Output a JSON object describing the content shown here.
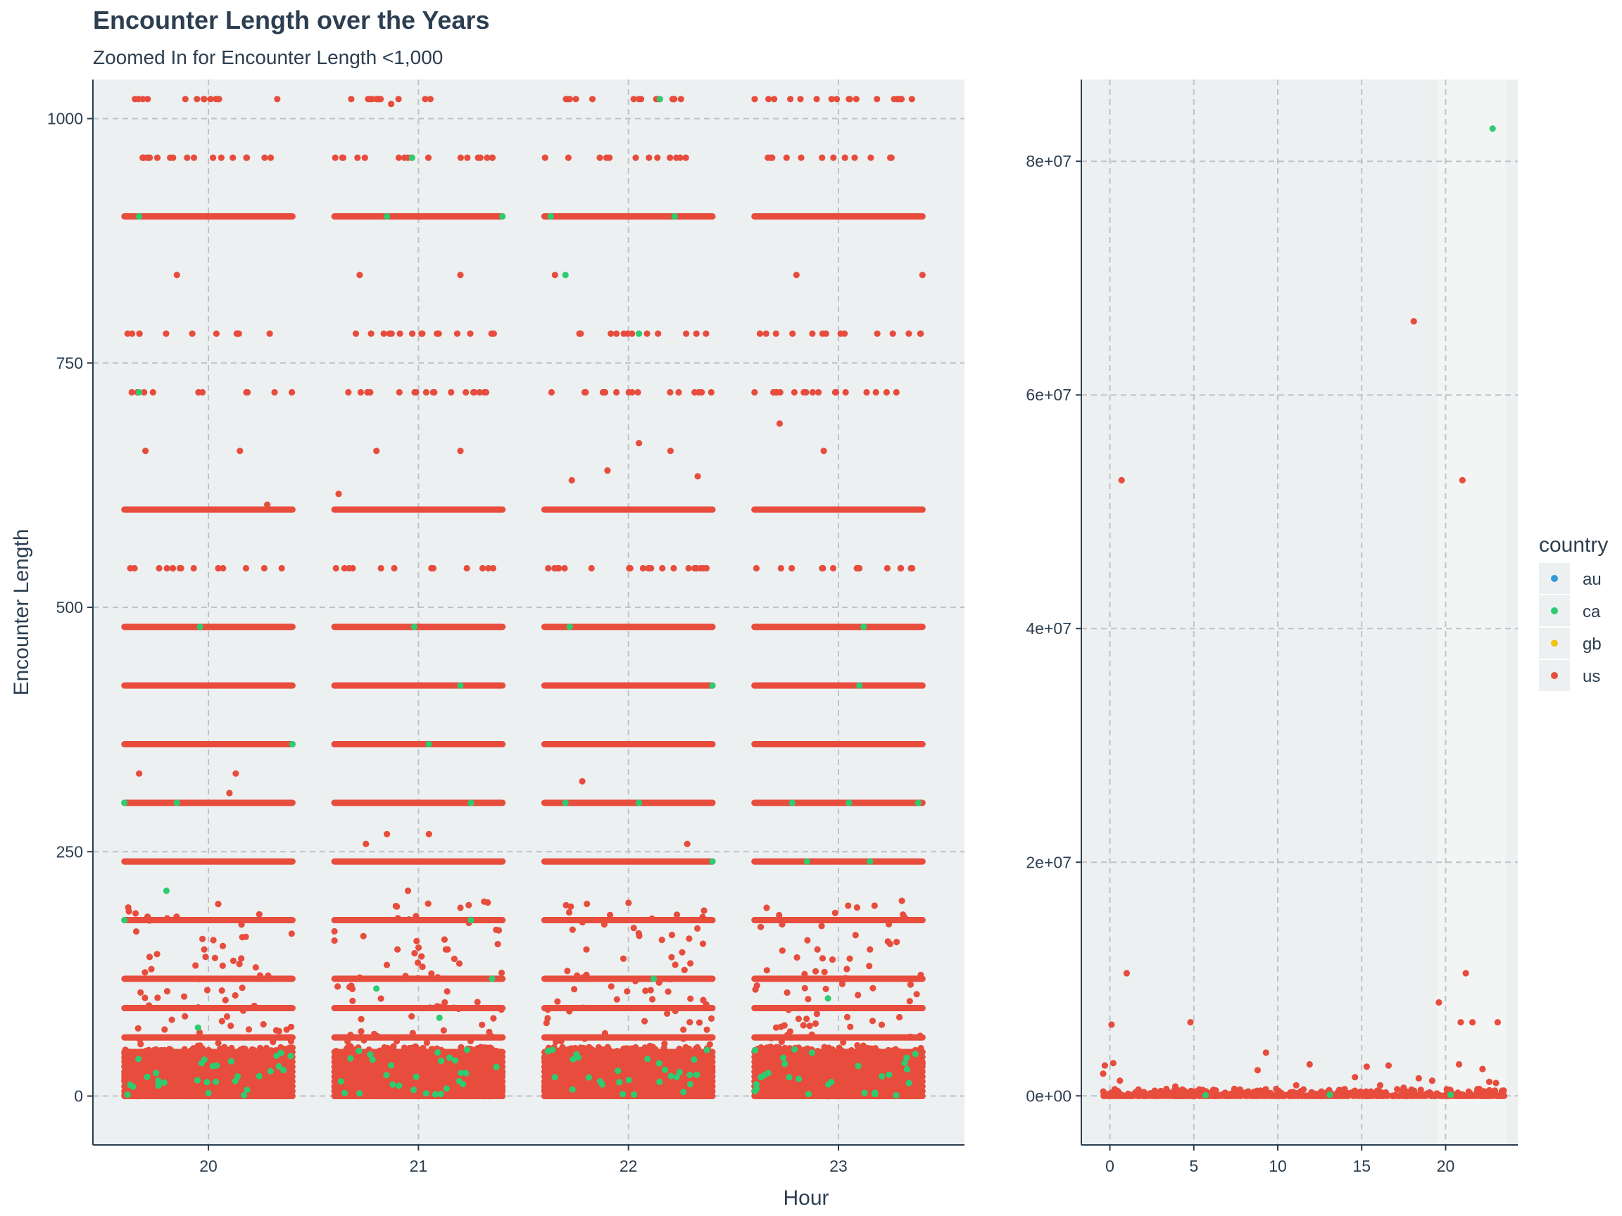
{
  "title": "Encounter Length over the Years",
  "subtitle": "Zoomed In for Encounter Length <1,000",
  "colors": {
    "au": "#3498db",
    "ca": "#2ecc71",
    "gb": "#f1c40f",
    "us": "#e74c3c"
  },
  "legend": {
    "title": "country",
    "items": [
      "au",
      "ca",
      "gb",
      "us"
    ]
  },
  "chart_data": [
    {
      "type": "scatter",
      "panel": "left",
      "xlabel": "Hour",
      "ylabel": "Encounter Length",
      "xlim": [
        19.45,
        23.6
      ],
      "ylim": [
        -50,
        1040
      ],
      "xticks": [
        20,
        21,
        22,
        23
      ],
      "yticks": [
        0,
        250,
        500,
        750,
        1000
      ],
      "ytick_labels": [
        "0",
        "250",
        "500",
        "750",
        "1000"
      ],
      "grid": true,
      "jitter_width": 0.4,
      "series": [
        {
          "name": "us",
          "bands": [
            0,
            5,
            10,
            15,
            20,
            25,
            30,
            35,
            40,
            45,
            60,
            90,
            120,
            180,
            240,
            300,
            360,
            420,
            480,
            600,
            900
          ],
          "sparse_levels": [
            540,
            720,
            780,
            960,
            1020
          ],
          "outliers": [
            [
              19.65,
              1020
            ],
            [
              19.98,
              1020
            ],
            [
              20.05,
              1020
            ],
            [
              20.8,
              1020
            ],
            [
              20.87,
              1015
            ],
            [
              21.75,
              1020
            ],
            [
              22.05,
              1020
            ],
            [
              22.25,
              1020
            ],
            [
              23.05,
              1020
            ],
            [
              23.3,
              1020
            ],
            [
              19.85,
              840
            ],
            [
              20.72,
              840
            ],
            [
              21.2,
              840
            ],
            [
              21.65,
              840
            ],
            [
              22.8,
              840
            ],
            [
              23.4,
              840
            ],
            [
              19.7,
              660
            ],
            [
              20.15,
              660
            ],
            [
              20.8,
              660
            ],
            [
              21.2,
              660
            ],
            [
              22.2,
              660
            ],
            [
              22.93,
              660
            ],
            [
              22.72,
              688
            ],
            [
              22.05,
              668
            ],
            [
              21.73,
              630
            ],
            [
              21.9,
              640
            ],
            [
              22.33,
              634
            ],
            [
              20.28,
              605
            ],
            [
              20.62,
              616
            ],
            [
              19.67,
              330
            ],
            [
              20.13,
              330
            ],
            [
              20.1,
              310
            ],
            [
              21.78,
              322
            ],
            [
              20.75,
              258
            ],
            [
              20.85,
              268
            ],
            [
              21.05,
              268
            ],
            [
              22.28,
              258
            ],
            [
              20.95,
              210
            ],
            [
              21.33,
              198
            ],
            [
              21.37,
              170
            ],
            [
              22.92,
              174
            ],
            [
              19.98,
              150
            ],
            [
              20.9,
              150
            ],
            [
              21.8,
              150
            ],
            [
              22.9,
              150
            ],
            [
              23.15,
              150
            ]
          ]
        },
        {
          "name": "ca",
          "points": [
            [
              19.67,
              900
            ],
            [
              20.85,
              900
            ],
            [
              21.4,
              900
            ],
            [
              21.63,
              900
            ],
            [
              22.22,
              900
            ],
            [
              19.67,
              720
            ],
            [
              19.96,
              480
            ],
            [
              20.98,
              480
            ],
            [
              21.72,
              480
            ],
            [
              23.12,
              480
            ],
            [
              19.6,
              300
            ],
            [
              19.85,
              300
            ],
            [
              21.25,
              300
            ],
            [
              21.7,
              300
            ],
            [
              22.05,
              300
            ],
            [
              22.78,
              300
            ],
            [
              23.05,
              300
            ],
            [
              23.38,
              300
            ],
            [
              19.8,
              210
            ],
            [
              22.4,
              240
            ],
            [
              22.85,
              240
            ],
            [
              23.15,
              240
            ],
            [
              21.2,
              420
            ],
            [
              22.4,
              420
            ],
            [
              23.1,
              420
            ],
            [
              20.4,
              360
            ],
            [
              21.05,
              360
            ],
            [
              19.6,
              180
            ],
            [
              21.25,
              180
            ],
            [
              20.97,
              960
            ],
            [
              22.15,
              1020
            ],
            [
              21.7,
              840
            ],
            [
              22.05,
              780
            ],
            [
              19.95,
              70
            ],
            [
              20.8,
              110
            ],
            [
              21.1,
              80
            ],
            [
              20.0,
              3
            ],
            [
              21.35,
              120
            ],
            [
              22.12,
              120
            ],
            [
              22.95,
              100
            ]
          ]
        }
      ]
    },
    {
      "type": "scatter",
      "panel": "right",
      "xlim": [
        -1.7,
        24.3
      ],
      "ylim": [
        -4200000,
        87000000
      ],
      "xticks": [
        0,
        5,
        10,
        15,
        20
      ],
      "yticks": [
        0,
        20000000,
        40000000,
        60000000,
        80000000
      ],
      "ytick_labels": [
        "0e+00",
        "2e+07",
        "4e+07",
        "6e+07",
        "8e+07"
      ],
      "highlight_x_range": [
        19.5,
        23.6
      ],
      "grid": true,
      "series": [
        {
          "name": "us",
          "points": [
            [
              0.7,
              52700000
            ],
            [
              18.1,
              66300000
            ],
            [
              21.0,
              52700000
            ],
            [
              1.0,
              10500000
            ],
            [
              21.2,
              10500000
            ],
            [
              0.1,
              6100000
            ],
            [
              4.8,
              6300000
            ],
            [
              20.9,
              6300000
            ],
            [
              21.6,
              6300000
            ],
            [
              23.1,
              6300000
            ],
            [
              19.6,
              8000000
            ],
            [
              9.3,
              3700000
            ],
            [
              11.9,
              2700000
            ],
            [
              15.3,
              2500000
            ],
            [
              -0.3,
              2600000
            ],
            [
              0.2,
              2800000
            ],
            [
              8.8,
              2200000
            ],
            [
              16.6,
              2600000
            ],
            [
              20.8,
              2700000
            ],
            [
              22.2,
              2300000
            ],
            [
              -0.4,
              1900000
            ],
            [
              14.6,
              1600000
            ],
            [
              18.4,
              1500000
            ],
            [
              0.6,
              1300000
            ],
            [
              22.6,
              1200000
            ],
            [
              3.9,
              800000
            ],
            [
              11.1,
              900000
            ],
            [
              16.1,
              900000
            ],
            [
              17.5,
              700000
            ],
            [
              19.2,
              1300000
            ],
            [
              23.0,
              1100000
            ]
          ]
        },
        {
          "name": "ca",
          "points": [
            [
              22.8,
              82800000
            ],
            [
              13.1,
              100000
            ],
            [
              5.7,
              50000
            ],
            [
              20.3,
              100000
            ]
          ]
        }
      ]
    }
  ]
}
